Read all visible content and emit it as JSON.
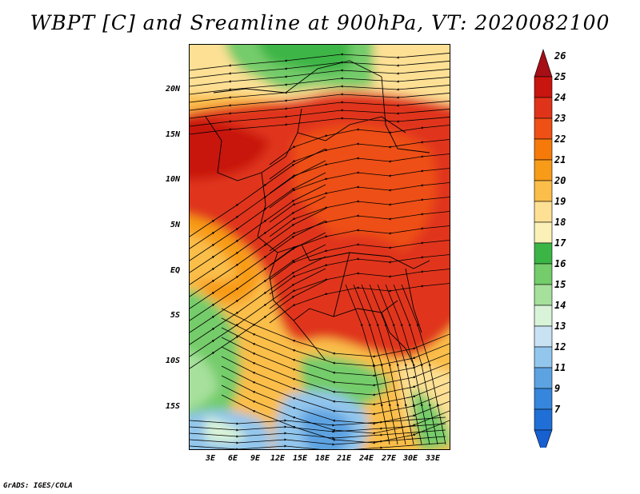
{
  "title": "WBPT [C] and Sreamline at 900hPa, VT: 2020082100",
  "credit": "GrADS: IGES/COLA",
  "lat_labels": [
    "20N",
    "15N",
    "10N",
    "5N",
    "EQ",
    "5S",
    "10S",
    "15S"
  ],
  "lon_labels": [
    "3E",
    "6E",
    "9E",
    "12E",
    "15E",
    "18E",
    "21E",
    "24E",
    "27E",
    "30E",
    "33E"
  ],
  "colorbar": {
    "labels": [
      "26",
      "25",
      "24",
      "23",
      "22",
      "21",
      "20",
      "19",
      "18",
      "17",
      "16",
      "15",
      "14",
      "13",
      "12",
      "11",
      "9",
      "7"
    ],
    "colors": [
      "#a50f15",
      "#c8150f",
      "#e0341a",
      "#ee5015",
      "#f67a0a",
      "#f89b19",
      "#fbbe4a",
      "#fde094",
      "#fbf1b6",
      "#3cb547",
      "#74cc6a",
      "#a6e09c",
      "#d8f3d8",
      "#c8e2f4",
      "#93c6ec",
      "#5da3e2",
      "#3586dc",
      "#1f6fd6",
      "#1660d2"
    ]
  },
  "regions": [
    {
      "name": "sahel-green",
      "color": "#74cc6a"
    },
    {
      "name": "north-yellow",
      "color": "#fde094"
    },
    {
      "name": "congo-red",
      "color": "#e0341a"
    },
    {
      "name": "west-red",
      "color": "#c8150f"
    },
    {
      "name": "south-green",
      "color": "#74cc6a"
    },
    {
      "name": "southern-blue",
      "color": "#93c6ec"
    }
  ]
}
